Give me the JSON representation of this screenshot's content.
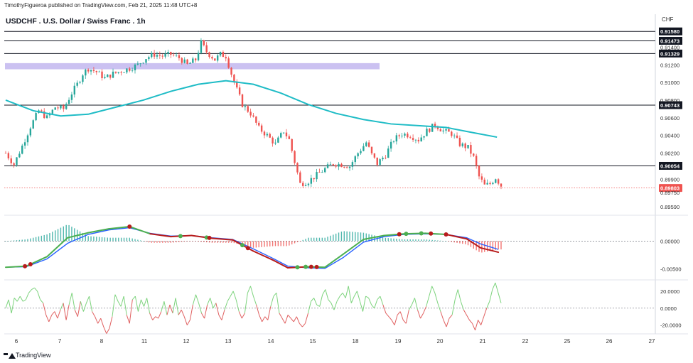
{
  "header": {
    "publisher_line": "TimothyFigueroa published on TradingView.com, Feb 21, 2025 11:48 UTC+8",
    "title": "USDCHF . U.S. Dollar / Swiss Franc . 1h",
    "currency": "CHF"
  },
  "footer": {
    "brand": "TradingView"
  },
  "colors": {
    "up": "#26a69a",
    "down": "#ef5350",
    "ma": "#1fbcc6",
    "zone": "#c2b6ee",
    "current_price": "#ef5350",
    "green_line": "#4caf50",
    "blue_line": "#2962ff",
    "dark_red_line": "#b71c1c",
    "osc_green": "#7dd37d",
    "osc_red": "#e06060"
  },
  "chart_data": [
    {
      "type": "candlestick",
      "name": "price",
      "x_ticks": [
        "6",
        "7",
        "8",
        "11",
        "12",
        "13",
        "14",
        "15",
        "18",
        "19",
        "20",
        "21",
        "22",
        "25",
        "26",
        "27"
      ],
      "y_ticks": [
        "0.91400",
        "0.91200",
        "0.91000",
        "0.90800",
        "0.90600",
        "0.90400",
        "0.90200",
        "0.89900",
        "0.89750",
        "0.89590"
      ],
      "ylim": [
        0.8955,
        0.9163
      ],
      "horizontal_levels": [
        {
          "label": "0.91580",
          "value": 0.9158
        },
        {
          "label": "0.91473",
          "value": 0.91473
        },
        {
          "label": "0.91329",
          "value": 0.91329
        },
        {
          "label": "0.90743",
          "value": 0.90743
        },
        {
          "label": "0.90054",
          "value": 0.90054
        }
      ],
      "current_price": {
        "label": "0.89803",
        "value": 0.89803
      },
      "zone": {
        "from_value": 0.9115,
        "to_value": 0.9122
      },
      "close_path": [
        [
          0,
          0.902
        ],
        [
          6,
          0.9007
        ],
        [
          12,
          0.9028
        ],
        [
          18,
          0.905
        ],
        [
          24,
          0.9068
        ],
        [
          30,
          0.906
        ],
        [
          36,
          0.9072
        ],
        [
          42,
          0.907
        ],
        [
          48,
          0.9088
        ],
        [
          52,
          0.9098
        ],
        [
          56,
          0.911
        ],
        [
          60,
          0.9116
        ],
        [
          66,
          0.9112
        ],
        [
          72,
          0.9105
        ],
        [
          78,
          0.911
        ],
        [
          84,
          0.9113
        ],
        [
          90,
          0.9116
        ],
        [
          96,
          0.912
        ],
        [
          102,
          0.9128
        ],
        [
          108,
          0.9132
        ],
        [
          114,
          0.913
        ],
        [
          120,
          0.9132
        ],
        [
          126,
          0.9128
        ],
        [
          132,
          0.912
        ],
        [
          138,
          0.9126
        ],
        [
          142,
          0.9145
        ],
        [
          146,
          0.9135
        ],
        [
          152,
          0.9126
        ],
        [
          156,
          0.9132
        ],
        [
          160,
          0.913
        ],
        [
          166,
          0.91
        ],
        [
          172,
          0.9075
        ],
        [
          178,
          0.9065
        ],
        [
          184,
          0.9048
        ],
        [
          190,
          0.904
        ],
        [
          196,
          0.903
        ],
        [
          202,
          0.9045
        ],
        [
          206,
          0.9035
        ],
        [
          210,
          0.901
        ],
        [
          214,
          0.8985
        ],
        [
          220,
          0.8988
        ],
        [
          226,
          0.8995
        ],
        [
          232,
          0.9002
        ],
        [
          238,
          0.9008
        ],
        [
          244,
          0.9007
        ],
        [
          250,
          0.9005
        ],
        [
          256,
          0.902
        ],
        [
          262,
          0.9032
        ],
        [
          266,
          0.9018
        ],
        [
          270,
          0.9008
        ],
        [
          276,
          0.9018
        ],
        [
          282,
          0.9035
        ],
        [
          288,
          0.9042
        ],
        [
          294,
          0.904
        ],
        [
          300,
          0.9035
        ],
        [
          306,
          0.9045
        ],
        [
          312,
          0.9052
        ],
        [
          318,
          0.9045
        ],
        [
          324,
          0.9042
        ],
        [
          330,
          0.903
        ],
        [
          336,
          0.9026
        ],
        [
          340,
          0.9015
        ],
        [
          344,
          0.8993
        ],
        [
          348,
          0.8983
        ],
        [
          352,
          0.8985
        ],
        [
          356,
          0.8992
        ],
        [
          360,
          0.8983
        ]
      ],
      "ma_path": [
        [
          0,
          0.908
        ],
        [
          20,
          0.9068
        ],
        [
          40,
          0.9062
        ],
        [
          60,
          0.9064
        ],
        [
          80,
          0.9072
        ],
        [
          100,
          0.908
        ],
        [
          120,
          0.909
        ],
        [
          140,
          0.9098
        ],
        [
          160,
          0.9102
        ],
        [
          180,
          0.9098
        ],
        [
          200,
          0.9088
        ],
        [
          220,
          0.9075
        ],
        [
          240,
          0.9065
        ],
        [
          260,
          0.9058
        ],
        [
          280,
          0.9053
        ],
        [
          300,
          0.9051
        ],
        [
          320,
          0.9049
        ],
        [
          340,
          0.9043
        ],
        [
          357,
          0.9038
        ]
      ]
    },
    {
      "type": "line",
      "name": "momentum",
      "y_ticks": [
        "0.00000",
        "-0.00500"
      ],
      "ylim": [
        -0.0062,
        0.004
      ],
      "green_line": [
        [
          0,
          -0.0047
        ],
        [
          15,
          -0.0045
        ],
        [
          30,
          -0.0028
        ],
        [
          45,
          0.0006
        ],
        [
          60,
          0.0015
        ],
        [
          75,
          0.0022
        ],
        [
          90,
          0.0026
        ],
        [
          105,
          0.0013
        ],
        [
          120,
          0.0008
        ],
        [
          135,
          0.001
        ],
        [
          150,
          0.0005
        ],
        [
          165,
          0.0002
        ],
        [
          180,
          -0.0018
        ],
        [
          195,
          -0.0035
        ],
        [
          205,
          -0.0048
        ],
        [
          220,
          -0.0046
        ],
        [
          232,
          -0.0047
        ],
        [
          245,
          -0.0024
        ],
        [
          260,
          0.0003
        ],
        [
          275,
          0.001
        ],
        [
          290,
          0.0013
        ],
        [
          305,
          0.0014
        ],
        [
          320,
          0.0012
        ],
        [
          335,
          0.0004
        ],
        [
          345,
          -0.0012
        ],
        [
          358,
          -0.002
        ]
      ],
      "blue_line": [
        [
          0,
          -0.0047
        ],
        [
          15,
          -0.0046
        ],
        [
          30,
          -0.0032
        ],
        [
          45,
          -0.0004
        ],
        [
          60,
          0.0012
        ],
        [
          75,
          0.002
        ],
        [
          90,
          0.0024
        ],
        [
          105,
          0.0014
        ],
        [
          120,
          0.0009
        ],
        [
          135,
          0.001
        ],
        [
          150,
          0.0006
        ],
        [
          165,
          0.0003
        ],
        [
          180,
          -0.0014
        ],
        [
          195,
          -0.0032
        ],
        [
          205,
          -0.0045
        ],
        [
          220,
          -0.0048
        ],
        [
          232,
          -0.0049
        ],
        [
          245,
          -0.003
        ],
        [
          260,
          -0.0002
        ],
        [
          275,
          0.0008
        ],
        [
          290,
          0.0012
        ],
        [
          305,
          0.0013
        ],
        [
          320,
          0.0012
        ],
        [
          335,
          0.0006
        ],
        [
          345,
          -0.0005
        ],
        [
          358,
          -0.0015
        ]
      ],
      "crossovers": [
        {
          "x": 14,
          "bullish": false
        },
        {
          "x": 18,
          "bullish": false
        },
        {
          "x": 90,
          "bullish": false
        },
        {
          "x": 127,
          "bullish": true
        },
        {
          "x": 146,
          "bullish": true
        },
        {
          "x": 148,
          "bullish": false
        },
        {
          "x": 172,
          "bullish": true
        },
        {
          "x": 176,
          "bullish": false
        },
        {
          "x": 212,
          "bullish": true
        },
        {
          "x": 218,
          "bullish": true
        },
        {
          "x": 222,
          "bullish": false
        },
        {
          "x": 226,
          "bullish": false
        },
        {
          "x": 286,
          "bullish": false
        },
        {
          "x": 291,
          "bullish": true
        },
        {
          "x": 302,
          "bullish": true
        },
        {
          "x": 309,
          "bullish": false
        },
        {
          "x": 320,
          "bullish": false
        }
      ]
    },
    {
      "type": "line",
      "name": "oscillator",
      "y_ticks": [
        "20.0000",
        "0.0000",
        "-20.0000"
      ],
      "ylim": [
        -27,
        30
      ],
      "values": [
        0,
        10,
        -6,
        12,
        8,
        14,
        8,
        10,
        18,
        22,
        24,
        20,
        10,
        6,
        -8,
        -16,
        -8,
        -4,
        -12,
        -2,
        6,
        -14,
        4,
        18,
        -2,
        -10,
        8,
        -4,
        6,
        14,
        -4,
        -10,
        -18,
        -12,
        -22,
        -30,
        -24,
        -10,
        16,
        8,
        2,
        14,
        -8,
        -18,
        10,
        14,
        -4,
        10,
        2,
        12,
        -6,
        -14,
        -10,
        -12,
        -4,
        8,
        -8,
        4,
        -6,
        12,
        -8,
        -2,
        -10,
        -20,
        -14,
        4,
        16,
        6,
        -6,
        -12,
        4,
        12,
        0,
        6,
        -8,
        -14,
        -2,
        8,
        14,
        20,
        10,
        -4,
        -12,
        -6,
        18,
        26,
        14,
        4,
        -8,
        -16,
        -10,
        -14,
        2,
        14,
        18,
        -6,
        -12,
        -18,
        -8,
        -12,
        -16,
        -10,
        -18,
        -22,
        -18,
        -6,
        8,
        12,
        4,
        2,
        16,
        22,
        10,
        6,
        -2,
        8,
        14,
        18,
        12,
        26,
        6,
        14,
        20,
        8,
        -4,
        14,
        12,
        4,
        0,
        10,
        14,
        4,
        -6,
        -10,
        -14,
        -20,
        -8,
        -4,
        -14,
        -18,
        -2,
        4,
        12,
        -2,
        -12,
        -6,
        2,
        14,
        26,
        18,
        6,
        -4,
        -14,
        -22,
        -12,
        -8,
        10,
        22,
        8,
        -2,
        -8,
        -14,
        -18,
        -26,
        -14,
        -20,
        -10,
        0,
        8,
        22,
        30,
        18,
        6
      ]
    }
  ]
}
